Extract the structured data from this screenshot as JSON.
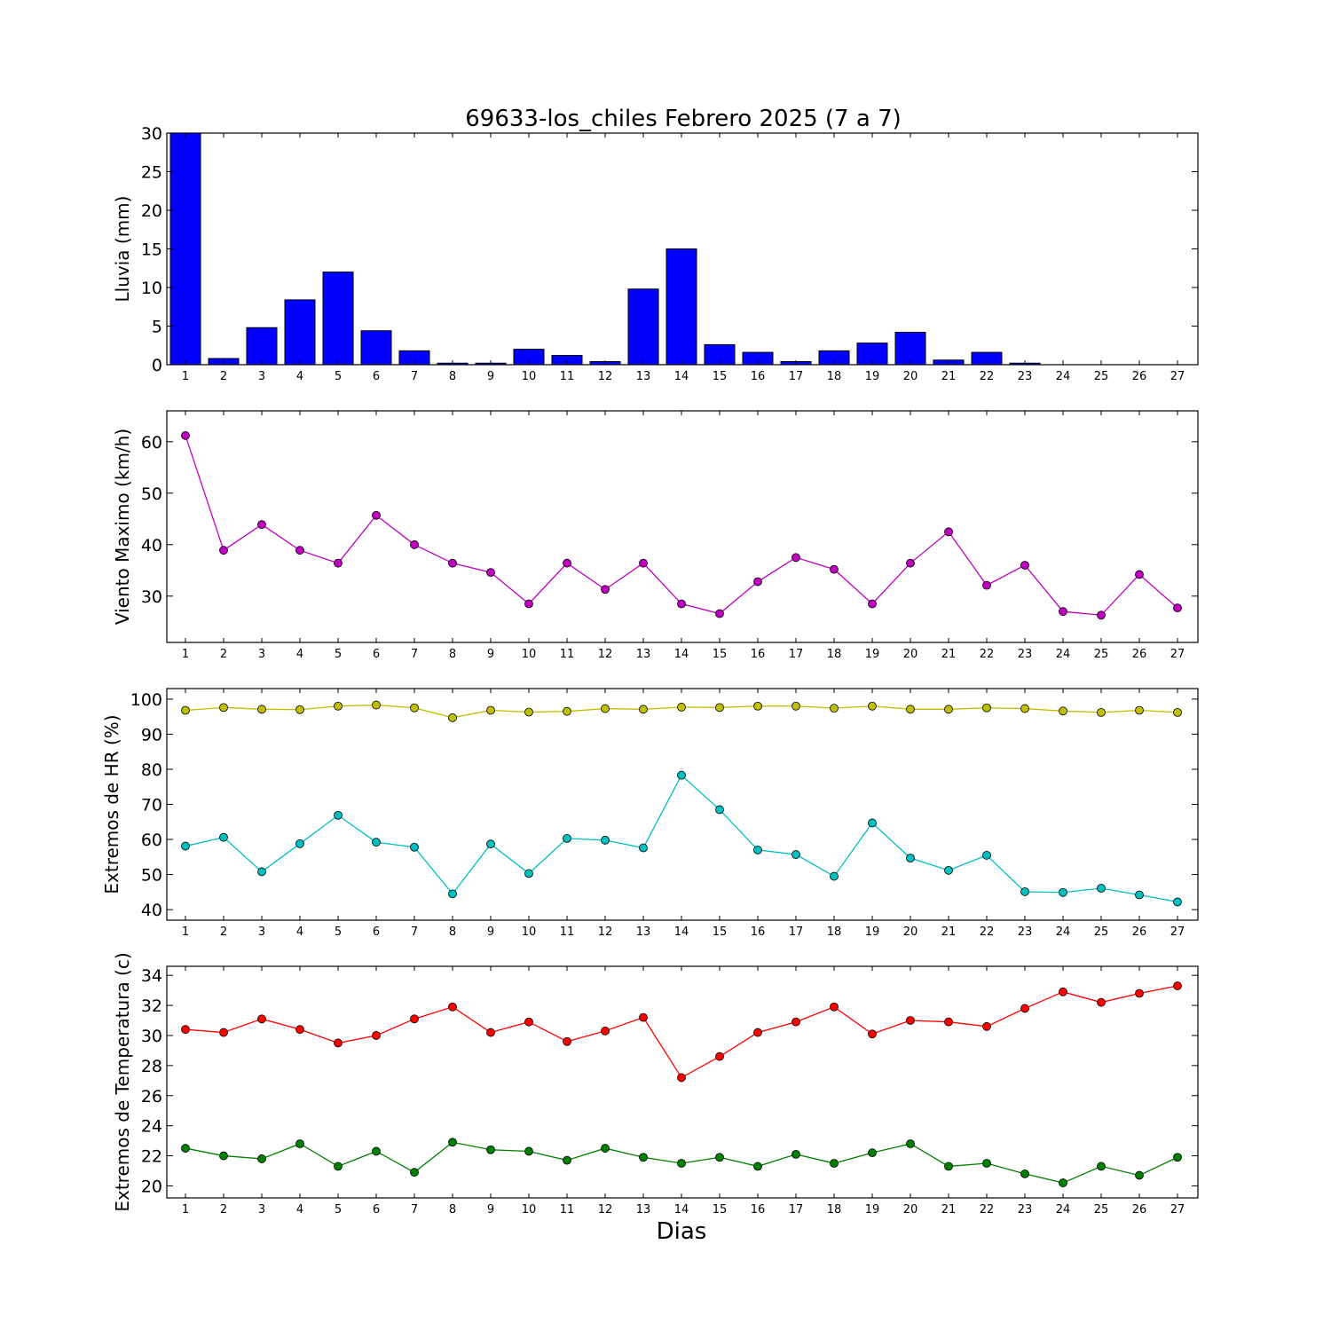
{
  "chart_title": "69633-los_chiles Febrero 2025  (7 a 7)",
  "xlabel": "Dias",
  "chart_data": [
    {
      "type": "bar",
      "title": "69633-los_chiles Febrero 2025  (7 a 7)",
      "ylabel": "Lluvia (mm)",
      "xlabel": "",
      "ylim": [
        0,
        30
      ],
      "yticks": [
        0,
        5,
        10,
        15,
        20,
        25,
        30
      ],
      "categories": [
        1,
        2,
        3,
        4,
        5,
        6,
        7,
        8,
        9,
        10,
        11,
        12,
        13,
        14,
        15,
        16,
        17,
        18,
        19,
        20,
        21,
        22,
        23,
        24,
        25,
        26,
        27
      ],
      "series": [
        {
          "color": "#0000ff",
          "values": [
            30.0,
            0.8,
            4.8,
            8.4,
            12.0,
            4.4,
            1.8,
            0.2,
            0.2,
            2.0,
            1.2,
            0.4,
            9.8,
            15.0,
            2.6,
            1.6,
            0.4,
            1.8,
            2.8,
            4.2,
            0.6,
            1.6,
            0.2,
            0.0,
            0.0,
            0.0,
            0.0
          ]
        }
      ],
      "grid": false
    },
    {
      "type": "line",
      "ylabel": "Viento Maximo (km/h)",
      "ylim": [
        21,
        66
      ],
      "yticks": [
        30,
        40,
        50,
        60
      ],
      "x": [
        1,
        2,
        3,
        4,
        5,
        6,
        7,
        8,
        9,
        10,
        11,
        12,
        13,
        14,
        15,
        16,
        17,
        18,
        19,
        20,
        21,
        22,
        23,
        24,
        25,
        26,
        27
      ],
      "series": [
        {
          "color": "#bf00bf",
          "values": [
            61.2,
            38.9,
            43.9,
            38.9,
            36.4,
            45.7,
            40.0,
            36.4,
            34.6,
            28.5,
            36.4,
            31.3,
            36.4,
            28.5,
            26.6,
            32.8,
            37.5,
            35.2,
            28.5,
            36.4,
            42.5,
            32.1,
            36.0,
            27.0,
            26.3,
            34.2,
            27.7
          ]
        }
      ],
      "grid": false
    },
    {
      "type": "line",
      "ylabel": "Extremos de HR (%)",
      "ylim": [
        37,
        103
      ],
      "yticks": [
        40,
        50,
        60,
        70,
        80,
        90,
        100
      ],
      "x": [
        1,
        2,
        3,
        4,
        5,
        6,
        7,
        8,
        9,
        10,
        11,
        12,
        13,
        14,
        15,
        16,
        17,
        18,
        19,
        20,
        21,
        22,
        23,
        24,
        25,
        26,
        27
      ],
      "series": [
        {
          "color": "#bfbf00",
          "values": [
            96.8,
            97.6,
            97.1,
            97.0,
            98.0,
            98.3,
            97.5,
            94.7,
            96.8,
            96.3,
            96.5,
            97.3,
            97.1,
            97.7,
            97.6,
            98.0,
            98.0,
            97.4,
            98.0,
            97.1,
            97.1,
            97.5,
            97.3,
            96.6,
            96.2,
            96.8,
            96.2
          ]
        },
        {
          "color": "#00bfbf",
          "values": [
            58.1,
            60.6,
            50.8,
            58.8,
            66.9,
            59.2,
            57.8,
            44.5,
            58.7,
            50.3,
            60.3,
            59.8,
            57.6,
            78.3,
            68.5,
            57.0,
            55.7,
            49.5,
            64.7,
            54.7,
            51.2,
            55.5,
            45.1,
            44.9,
            46.1,
            44.2,
            42.2
          ]
        }
      ],
      "grid": false
    },
    {
      "type": "line",
      "ylabel": "Extremos de Temperatura (c)",
      "xlabel": "Dias",
      "ylim": [
        19.2,
        34.6
      ],
      "yticks": [
        20,
        22,
        24,
        26,
        28,
        30,
        32,
        34
      ],
      "x": [
        1,
        2,
        3,
        4,
        5,
        6,
        7,
        8,
        9,
        10,
        11,
        12,
        13,
        14,
        15,
        16,
        17,
        18,
        19,
        20,
        21,
        22,
        23,
        24,
        25,
        26,
        27
      ],
      "series": [
        {
          "color": "#ff0000",
          "values": [
            30.4,
            30.2,
            31.1,
            30.4,
            29.5,
            30.0,
            31.1,
            31.9,
            30.2,
            30.9,
            29.6,
            30.3,
            31.2,
            27.2,
            28.6,
            30.2,
            30.9,
            31.9,
            30.1,
            31.0,
            30.9,
            30.6,
            31.8,
            32.9,
            32.2,
            32.8,
            33.3
          ]
        },
        {
          "color": "#008000",
          "values": [
            22.5,
            22.0,
            21.8,
            22.8,
            21.3,
            22.3,
            20.9,
            22.9,
            22.4,
            22.3,
            21.7,
            22.5,
            21.9,
            21.5,
            21.9,
            21.3,
            22.1,
            21.5,
            22.2,
            22.8,
            21.3,
            21.5,
            20.8,
            20.2,
            21.3,
            20.7,
            21.9
          ]
        }
      ],
      "grid": false
    }
  ]
}
